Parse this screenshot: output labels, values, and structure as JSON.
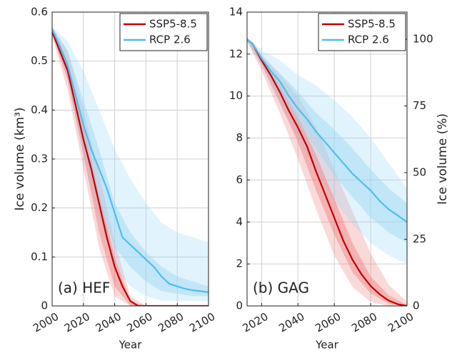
{
  "chart_data": [
    {
      "type": "line",
      "annotation": "(a) HEF",
      "xlabel": "Year",
      "ylabel": "Ice volume (km³)",
      "xlim": [
        2000,
        2100
      ],
      "xticks": [
        2000,
        2020,
        2040,
        2060,
        2080,
        2100
      ],
      "ylim": [
        0,
        0.6
      ],
      "yticks": [
        0,
        0.1,
        0.2,
        0.3,
        0.4,
        0.5,
        0.6
      ],
      "grid": true,
      "legend": "upper right",
      "x": [
        2000,
        2005,
        2010,
        2015,
        2020,
        2025,
        2030,
        2035,
        2040,
        2045,
        2050,
        2055,
        2060,
        2065,
        2070,
        2075,
        2080,
        2085,
        2090,
        2095,
        2100
      ],
      "band_x": [
        2000,
        2010,
        2020,
        2030,
        2040,
        2050,
        2060,
        2070,
        2080,
        2090,
        2100
      ],
      "series": [
        {
          "name": "SSP5-8.5",
          "color": "#c00000",
          "band_color": "#f08080",
          "values": [
            0.56,
            0.52,
            0.48,
            0.41,
            0.34,
            0.28,
            0.21,
            0.14,
            0.08,
            0.04,
            0.01,
            0,
            0,
            0,
            0,
            0,
            0,
            0,
            0,
            0,
            0
          ],
          "outer_low": [
            0.55,
            0.44,
            0.28,
            0.12,
            0.02,
            0,
            0,
            0,
            0,
            0,
            0
          ],
          "outer_high": [
            0.57,
            0.52,
            0.4,
            0.27,
            0.13,
            0.02,
            0,
            0,
            0,
            0,
            0
          ],
          "inner_low": [
            0.555,
            0.46,
            0.31,
            0.15,
            0.04,
            0,
            0,
            0,
            0,
            0,
            0
          ],
          "inner_high": [
            0.565,
            0.5,
            0.37,
            0.23,
            0.1,
            0.01,
            0,
            0,
            0,
            0,
            0
          ]
        },
        {
          "name": "RCP 2.6",
          "color": "#4dbeee",
          "band_color": "#9bd8f4",
          "values": [
            0.565,
            0.53,
            0.49,
            0.43,
            0.37,
            0.32,
            0.28,
            0.24,
            0.19,
            0.14,
            0.125,
            0.11,
            0.095,
            0.08,
            0.06,
            0.045,
            0.04,
            0.035,
            0.032,
            0.03,
            0.028
          ],
          "outer_low": [
            0.56,
            0.46,
            0.3,
            0.18,
            0.08,
            0.04,
            0.02,
            0.01,
            0.01,
            0.01,
            0.01
          ],
          "outer_high": [
            0.57,
            0.54,
            0.48,
            0.4,
            0.32,
            0.26,
            0.21,
            0.17,
            0.15,
            0.14,
            0.13
          ],
          "inner_low": [
            0.56,
            0.48,
            0.33,
            0.21,
            0.12,
            0.08,
            0.05,
            0.03,
            0.025,
            0.02,
            0.02
          ],
          "inner_high": [
            0.57,
            0.52,
            0.42,
            0.32,
            0.21,
            0.15,
            0.11,
            0.08,
            0.06,
            0.05,
            0.04
          ]
        }
      ]
    },
    {
      "type": "line",
      "annotation": "(b) GAG",
      "xlabel": "Year",
      "y2label": "Ice volume (%)",
      "xlim": [
        2012,
        2100
      ],
      "xticks": [
        2020,
        2040,
        2060,
        2080,
        2100
      ],
      "ylim": [
        0,
        14
      ],
      "yticks": [
        0,
        2,
        4,
        6,
        8,
        10,
        12,
        14
      ],
      "y2lim": [
        0,
        110.2
      ],
      "y2ticks": [
        0,
        25,
        50,
        75,
        100
      ],
      "grid": true,
      "legend": "upper right",
      "x": [
        2012,
        2015,
        2020,
        2025,
        2030,
        2035,
        2040,
        2045,
        2050,
        2055,
        2060,
        2065,
        2070,
        2075,
        2080,
        2085,
        2090,
        2095,
        2100
      ],
      "band_x": [
        2012,
        2020,
        2030,
        2040,
        2050,
        2060,
        2070,
        2080,
        2090,
        2100
      ],
      "series": [
        {
          "name": "SSP5-8.5",
          "color": "#c00000",
          "band_color": "#f08080",
          "values": [
            12.7,
            12.5,
            11.7,
            11.0,
            10.2,
            9.3,
            8.5,
            7.6,
            6.4,
            5.3,
            4.2,
            3.1,
            2.2,
            1.5,
            0.95,
            0.55,
            0.25,
            0.08,
            0
          ],
          "outer_low": [
            12.6,
            11.2,
            9.2,
            7.0,
            4.6,
            2.4,
            0.9,
            0.2,
            0,
            0
          ],
          "outer_high": [
            12.8,
            12.0,
            11.0,
            10.0,
            8.5,
            6.5,
            4.5,
            2.5,
            1.0,
            0.2
          ],
          "inner_low": [
            12.65,
            11.5,
            9.7,
            7.8,
            5.5,
            3.4,
            1.6,
            0.6,
            0.1,
            0
          ],
          "inner_high": [
            12.75,
            11.8,
            10.5,
            9.0,
            7.2,
            5.1,
            3.0,
            1.4,
            0.5,
            0.05
          ]
        },
        {
          "name": "RCP 2.6",
          "color": "#4dbeee",
          "band_color": "#9bd8f4",
          "values": [
            12.7,
            12.5,
            11.8,
            11.2,
            10.7,
            10.0,
            9.4,
            8.9,
            8.3,
            7.8,
            7.3,
            6.8,
            6.3,
            5.9,
            5.5,
            5.0,
            4.6,
            4.3,
            4.0
          ],
          "outer_low": [
            12.6,
            11.4,
            9.6,
            8.0,
            6.4,
            5.0,
            3.9,
            3.0,
            2.4,
            2.0
          ],
          "outer_high": [
            12.8,
            12.2,
            11.7,
            11.0,
            10.5,
            9.8,
            9.0,
            8.0,
            6.8,
            5.6
          ],
          "inner_low": [
            12.65,
            11.6,
            10.2,
            8.8,
            7.5,
            6.2,
            5.2,
            4.2,
            3.5,
            3.0
          ],
          "inner_high": [
            12.75,
            11.9,
            11.1,
            10.2,
            9.2,
            8.4,
            7.5,
            6.5,
            5.6,
            4.9
          ]
        }
      ]
    }
  ]
}
